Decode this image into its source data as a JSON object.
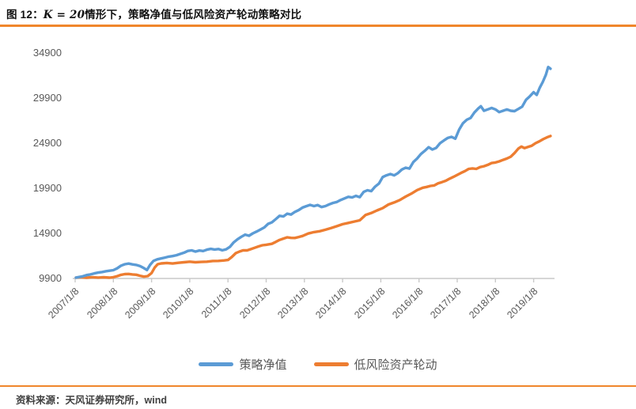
{
  "figure": {
    "title_prefix": "图 12：",
    "title_math": "K = 20",
    "title_suffix": "情形下，策略净值与低风险资产轮动策略对比"
  },
  "source_note": "资料来源：天风证券研究所，wind",
  "colors": {
    "rule_orange": "#F0862B",
    "axis_line": "#C9C9C9",
    "axis_text": "#595959",
    "series_blue": "#5B9BD5",
    "series_orange": "#ED7D31",
    "background": "#FFFFFF"
  },
  "chart_data": {
    "type": "line",
    "title": "图 12：K = 20情形下，策略净值与低风险资产轮动策略对比",
    "xlabel": "",
    "ylabel": "",
    "grid": false,
    "legend_position": "bottom",
    "ylim": [
      9900,
      34900
    ],
    "xlim": [
      2006.95,
      2019.62
    ],
    "y_ticks": [
      34900,
      29900,
      24900,
      19900,
      14900,
      9900
    ],
    "x_tick_labels": [
      "2007/1/8",
      "2008/1/8",
      "2009/1/8",
      "2010/1/8",
      "2011/1/8",
      "2012/1/8",
      "2013/1/8",
      "2014/1/8",
      "2015/1/8",
      "2016/1/8",
      "2017/1/8",
      "2018/1/8",
      "2019/1/8"
    ],
    "x_tick_positions": [
      2007,
      2008,
      2009,
      2010,
      2011,
      2012,
      2013,
      2014,
      2015,
      2016,
      2017,
      2018,
      2019
    ],
    "series": [
      {
        "name": "策略净值",
        "color": "#5B9BD5",
        "points": [
          [
            2007.02,
            10000
          ],
          [
            2007.1,
            10060
          ],
          [
            2007.2,
            10140
          ],
          [
            2007.3,
            10280
          ],
          [
            2007.4,
            10350
          ],
          [
            2007.5,
            10460
          ],
          [
            2007.6,
            10550
          ],
          [
            2007.7,
            10610
          ],
          [
            2007.8,
            10700
          ],
          [
            2007.9,
            10760
          ],
          [
            2008.0,
            10820
          ],
          [
            2008.1,
            11020
          ],
          [
            2008.2,
            11320
          ],
          [
            2008.3,
            11480
          ],
          [
            2008.4,
            11550
          ],
          [
            2008.5,
            11460
          ],
          [
            2008.6,
            11400
          ],
          [
            2008.7,
            11270
          ],
          [
            2008.8,
            11050
          ],
          [
            2008.88,
            10840
          ],
          [
            2008.96,
            11400
          ],
          [
            2009.05,
            11850
          ],
          [
            2009.15,
            12020
          ],
          [
            2009.25,
            12120
          ],
          [
            2009.35,
            12220
          ],
          [
            2009.45,
            12320
          ],
          [
            2009.55,
            12380
          ],
          [
            2009.65,
            12480
          ],
          [
            2009.75,
            12620
          ],
          [
            2009.85,
            12760
          ],
          [
            2009.95,
            12950
          ],
          [
            2010.05,
            13010
          ],
          [
            2010.15,
            12880
          ],
          [
            2010.25,
            13000
          ],
          [
            2010.35,
            12940
          ],
          [
            2010.45,
            13090
          ],
          [
            2010.55,
            13180
          ],
          [
            2010.65,
            13110
          ],
          [
            2010.75,
            13160
          ],
          [
            2010.85,
            13020
          ],
          [
            2010.95,
            13130
          ],
          [
            2011.05,
            13400
          ],
          [
            2011.15,
            13900
          ],
          [
            2011.25,
            14250
          ],
          [
            2011.35,
            14520
          ],
          [
            2011.45,
            14760
          ],
          [
            2011.55,
            14640
          ],
          [
            2011.65,
            14900
          ],
          [
            2011.75,
            15100
          ],
          [
            2011.85,
            15330
          ],
          [
            2011.95,
            15560
          ],
          [
            2012.05,
            15950
          ],
          [
            2012.15,
            16120
          ],
          [
            2012.25,
            16480
          ],
          [
            2012.35,
            16850
          ],
          [
            2012.45,
            16780
          ],
          [
            2012.55,
            17080
          ],
          [
            2012.65,
            16990
          ],
          [
            2012.75,
            17280
          ],
          [
            2012.85,
            17480
          ],
          [
            2012.95,
            17760
          ],
          [
            2013.05,
            17920
          ],
          [
            2013.15,
            18060
          ],
          [
            2013.25,
            17930
          ],
          [
            2013.35,
            18040
          ],
          [
            2013.45,
            17820
          ],
          [
            2013.55,
            17930
          ],
          [
            2013.65,
            18120
          ],
          [
            2013.75,
            18280
          ],
          [
            2013.85,
            18380
          ],
          [
            2013.95,
            18600
          ],
          [
            2014.05,
            18780
          ],
          [
            2014.15,
            18950
          ],
          [
            2014.25,
            18880
          ],
          [
            2014.35,
            19060
          ],
          [
            2014.45,
            18920
          ],
          [
            2014.55,
            19500
          ],
          [
            2014.65,
            19680
          ],
          [
            2014.75,
            19580
          ],
          [
            2014.85,
            20080
          ],
          [
            2014.95,
            20420
          ],
          [
            2015.05,
            21150
          ],
          [
            2015.15,
            21340
          ],
          [
            2015.25,
            21480
          ],
          [
            2015.35,
            21330
          ],
          [
            2015.45,
            21580
          ],
          [
            2015.55,
            21980
          ],
          [
            2015.65,
            22180
          ],
          [
            2015.75,
            22080
          ],
          [
            2015.85,
            22800
          ],
          [
            2015.95,
            23200
          ],
          [
            2016.05,
            23700
          ],
          [
            2016.15,
            24050
          ],
          [
            2016.25,
            24450
          ],
          [
            2016.35,
            24200
          ],
          [
            2016.45,
            24380
          ],
          [
            2016.55,
            24900
          ],
          [
            2016.65,
            25200
          ],
          [
            2016.75,
            25480
          ],
          [
            2016.85,
            25600
          ],
          [
            2016.95,
            25400
          ],
          [
            2017.05,
            26400
          ],
          [
            2017.15,
            27100
          ],
          [
            2017.25,
            27500
          ],
          [
            2017.35,
            27700
          ],
          [
            2017.45,
            28300
          ],
          [
            2017.55,
            28750
          ],
          [
            2017.62,
            29000
          ],
          [
            2017.7,
            28500
          ],
          [
            2017.8,
            28650
          ],
          [
            2017.9,
            28800
          ],
          [
            2018.0,
            28650
          ],
          [
            2018.1,
            28350
          ],
          [
            2018.2,
            28500
          ],
          [
            2018.3,
            28650
          ],
          [
            2018.4,
            28500
          ],
          [
            2018.5,
            28450
          ],
          [
            2018.6,
            28700
          ],
          [
            2018.7,
            28950
          ],
          [
            2018.8,
            29700
          ],
          [
            2018.9,
            30100
          ],
          [
            2019.0,
            30550
          ],
          [
            2019.08,
            30250
          ],
          [
            2019.16,
            31050
          ],
          [
            2019.24,
            31700
          ],
          [
            2019.32,
            32500
          ],
          [
            2019.38,
            33350
          ],
          [
            2019.44,
            33150
          ]
        ]
      },
      {
        "name": "低风险资产轮动",
        "color": "#ED7D31",
        "points": [
          [
            2007.02,
            10000
          ],
          [
            2007.15,
            10040
          ],
          [
            2007.3,
            9990
          ],
          [
            2007.45,
            10040
          ],
          [
            2007.6,
            10000
          ],
          [
            2007.75,
            10030
          ],
          [
            2007.9,
            9990
          ],
          [
            2008.0,
            10040
          ],
          [
            2008.1,
            10150
          ],
          [
            2008.2,
            10300
          ],
          [
            2008.3,
            10380
          ],
          [
            2008.4,
            10400
          ],
          [
            2008.5,
            10350
          ],
          [
            2008.6,
            10310
          ],
          [
            2008.7,
            10200
          ],
          [
            2008.8,
            10100
          ],
          [
            2008.9,
            10160
          ],
          [
            2009.0,
            10500
          ],
          [
            2009.08,
            11100
          ],
          [
            2009.16,
            11480
          ],
          [
            2009.25,
            11570
          ],
          [
            2009.4,
            11620
          ],
          [
            2009.55,
            11560
          ],
          [
            2009.7,
            11640
          ],
          [
            2009.85,
            11700
          ],
          [
            2010.0,
            11760
          ],
          [
            2010.15,
            11700
          ],
          [
            2010.3,
            11730
          ],
          [
            2010.45,
            11760
          ],
          [
            2010.6,
            11840
          ],
          [
            2010.75,
            11850
          ],
          [
            2010.9,
            11900
          ],
          [
            2011.0,
            11950
          ],
          [
            2011.1,
            12280
          ],
          [
            2011.2,
            12700
          ],
          [
            2011.3,
            12880
          ],
          [
            2011.4,
            13020
          ],
          [
            2011.5,
            13010
          ],
          [
            2011.6,
            13150
          ],
          [
            2011.7,
            13300
          ],
          [
            2011.8,
            13450
          ],
          [
            2011.9,
            13580
          ],
          [
            2012.0,
            13640
          ],
          [
            2012.15,
            13740
          ],
          [
            2012.25,
            13950
          ],
          [
            2012.35,
            14170
          ],
          [
            2012.45,
            14320
          ],
          [
            2012.55,
            14460
          ],
          [
            2012.65,
            14400
          ],
          [
            2012.75,
            14390
          ],
          [
            2012.85,
            14500
          ],
          [
            2012.95,
            14610
          ],
          [
            2013.1,
            14880
          ],
          [
            2013.25,
            15040
          ],
          [
            2013.4,
            15140
          ],
          [
            2013.55,
            15300
          ],
          [
            2013.7,
            15490
          ],
          [
            2013.85,
            15700
          ],
          [
            2014.0,
            15920
          ],
          [
            2014.15,
            16060
          ],
          [
            2014.3,
            16210
          ],
          [
            2014.45,
            16350
          ],
          [
            2014.6,
            16940
          ],
          [
            2014.75,
            17150
          ],
          [
            2014.9,
            17440
          ],
          [
            2015.05,
            17700
          ],
          [
            2015.2,
            18100
          ],
          [
            2015.35,
            18330
          ],
          [
            2015.5,
            18600
          ],
          [
            2015.65,
            18980
          ],
          [
            2015.8,
            19300
          ],
          [
            2015.95,
            19700
          ],
          [
            2016.1,
            19960
          ],
          [
            2016.2,
            20050
          ],
          [
            2016.3,
            20160
          ],
          [
            2016.4,
            20220
          ],
          [
            2016.5,
            20440
          ],
          [
            2016.6,
            20580
          ],
          [
            2016.7,
            20730
          ],
          [
            2016.8,
            20960
          ],
          [
            2016.9,
            21160
          ],
          [
            2017.0,
            21380
          ],
          [
            2017.1,
            21600
          ],
          [
            2017.2,
            21800
          ],
          [
            2017.3,
            22050
          ],
          [
            2017.4,
            22100
          ],
          [
            2017.5,
            22050
          ],
          [
            2017.6,
            22250
          ],
          [
            2017.7,
            22350
          ],
          [
            2017.8,
            22500
          ],
          [
            2017.9,
            22700
          ],
          [
            2018.0,
            22760
          ],
          [
            2018.1,
            22880
          ],
          [
            2018.2,
            23050
          ],
          [
            2018.3,
            23200
          ],
          [
            2018.4,
            23400
          ],
          [
            2018.5,
            23800
          ],
          [
            2018.6,
            24300
          ],
          [
            2018.68,
            24520
          ],
          [
            2018.76,
            24360
          ],
          [
            2018.85,
            24480
          ],
          [
            2018.95,
            24620
          ],
          [
            2019.05,
            24900
          ],
          [
            2019.15,
            25100
          ],
          [
            2019.25,
            25350
          ],
          [
            2019.35,
            25550
          ],
          [
            2019.44,
            25700
          ]
        ]
      }
    ]
  }
}
